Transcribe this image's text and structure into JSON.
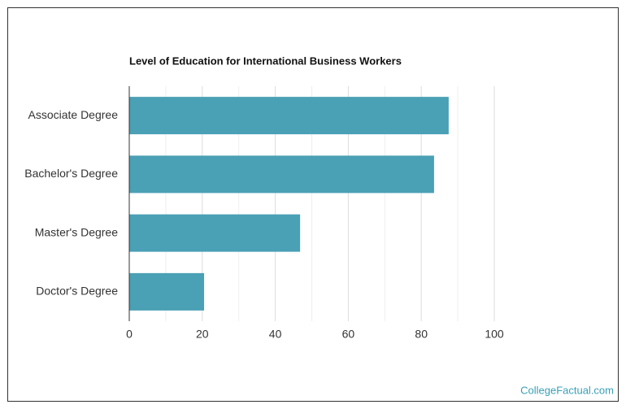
{
  "chart_data": {
    "type": "bar",
    "orientation": "horizontal",
    "title": "Level of Education for International Business Workers",
    "categories": [
      "Associate Degree",
      "Bachelor's Degree",
      "Master's Degree",
      "Doctor's Degree"
    ],
    "values": [
      87.5,
      83.5,
      46.8,
      20.5
    ],
    "color": "#4aa0b5",
    "xlim": [
      0,
      100
    ],
    "xticks": [
      0,
      20,
      40,
      60,
      80,
      100
    ],
    "xminor_ticks": [
      10,
      30,
      50,
      70,
      90
    ],
    "grid": true,
    "footer": "CollegeFactual.com"
  }
}
